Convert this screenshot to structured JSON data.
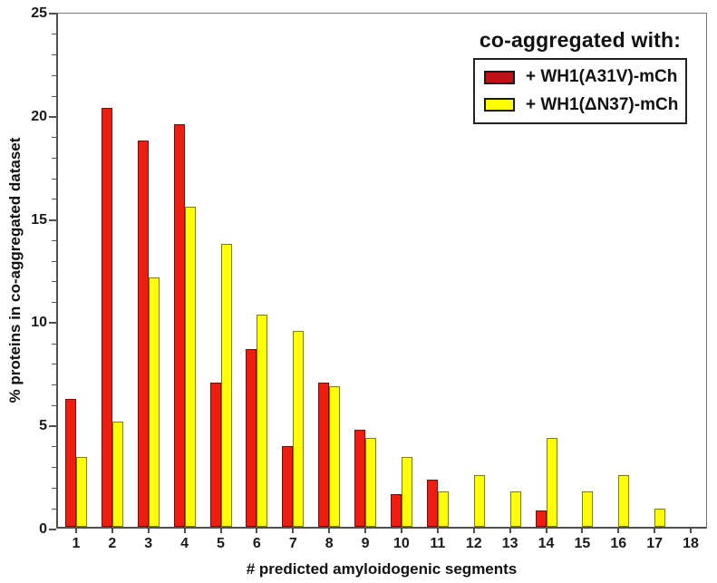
{
  "chart_data": {
    "type": "bar",
    "title": "",
    "legend_title": "co-aggregated with:",
    "xlabel": "# predicted amyloidogenic segments",
    "ylabel": "% proteins in co-aggregated dataset",
    "categories": [
      "1",
      "2",
      "3",
      "4",
      "5",
      "6",
      "7",
      "8",
      "9",
      "10",
      "11",
      "12",
      "13",
      "14",
      "15",
      "16",
      "17",
      "18"
    ],
    "series": [
      {
        "name": "+ WH1(A31V)-mCh",
        "color": "#ee1c11",
        "border_color": "#7c0b06",
        "legend_color": "#c01319",
        "values": [
          6.2,
          20.3,
          18.7,
          19.5,
          7.0,
          8.6,
          3.9,
          7.0,
          4.7,
          1.6,
          2.3,
          0,
          0,
          0.8,
          0,
          0,
          0,
          0
        ]
      },
      {
        "name": "+ WH1(ΔN37)-mCh",
        "color": "#ffff00",
        "border_color": "#7c7c00",
        "legend_color": "#ffff00",
        "values": [
          3.4,
          5.1,
          12.1,
          15.5,
          13.7,
          10.3,
          9.5,
          6.8,
          4.3,
          3.4,
          1.7,
          2.5,
          1.7,
          4.3,
          1.7,
          2.5,
          0.9,
          0
        ]
      }
    ],
    "ylim": [
      0,
      25
    ],
    "y_major_ticks": [
      0,
      5,
      10,
      15,
      20,
      25
    ],
    "y_minor_step": 1,
    "grid": false,
    "legend_position": "top-right",
    "axis_color": "#4f4f4f"
  }
}
